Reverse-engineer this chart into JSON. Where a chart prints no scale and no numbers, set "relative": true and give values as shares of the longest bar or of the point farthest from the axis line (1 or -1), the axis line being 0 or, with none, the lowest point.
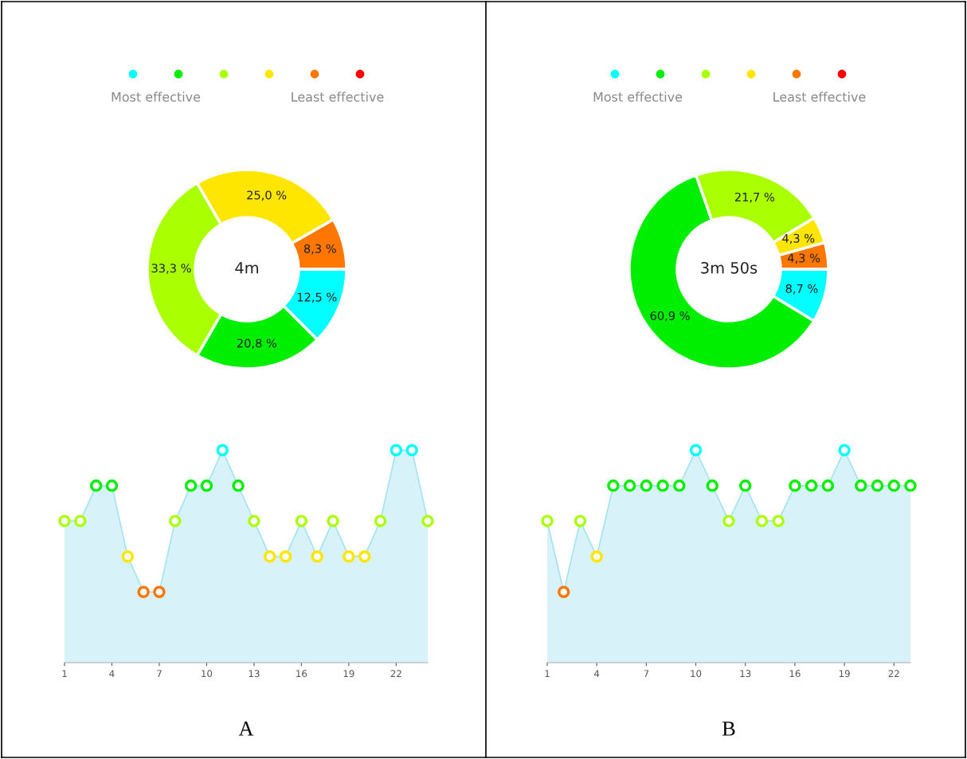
{
  "chart_data": [
    {
      "type": "donut",
      "categories": [
        null,
        null,
        null,
        null,
        null,
        null
      ],
      "values": [
        12.5,
        20.8,
        33.3,
        25.0,
        8.3,
        0
      ],
      "colors": [
        "#00ffff",
        "#00ee00",
        "#aaff00",
        "#ffe600",
        "#ff7700",
        "#ff0000"
      ],
      "value_labels": [
        "12,5 %",
        "20,8 %",
        "33,3 %",
        "25,0 %",
        "8,3 %",
        null
      ],
      "annotations": [
        "Most effective",
        "Least effective",
        "4m"
      ]
    },
    {
      "type": "area",
      "x": [
        1,
        2,
        3,
        4,
        5,
        6,
        7,
        8,
        9,
        10,
        11,
        12,
        13,
        14,
        15,
        16,
        17,
        18,
        19,
        20,
        21,
        22,
        23,
        24
      ],
      "relative": true,
      "xlim": [
        1,
        24
      ],
      "xticks": [
        1,
        4,
        7,
        10,
        13,
        16,
        19,
        22
      ],
      "tick_labels": "x",
      "marker": "circle",
      "grid": false,
      "xlabel": "A",
      "series": [
        {
          "color": "#a6e3f0",
          "values": [
            0.667,
            0.667,
            0.833,
            0.833,
            0.5,
            0.333,
            0.333,
            0.667,
            0.833,
            0.833,
            1,
            0.833,
            0.667,
            0.5,
            0.5,
            0.667,
            0.5,
            0.667,
            0.5,
            0.5,
            0.667,
            1,
            1,
            0.667
          ],
          "colors": [
            "#aaff00",
            "#aaff00",
            "#00ee00",
            "#00ee00",
            "#ffe600",
            "#ff7700",
            "#ff7700",
            "#aaff00",
            "#00ee00",
            "#00ee00",
            "#00ffff",
            "#00ee00",
            "#aaff00",
            "#ffe600",
            "#ffe600",
            "#aaff00",
            "#ffe600",
            "#aaff00",
            "#ffe600",
            "#ffe600",
            "#aaff00",
            "#00ffff",
            "#00ffff",
            "#aaff00"
          ]
        }
      ]
    },
    {
      "type": "donut",
      "categories": [
        null,
        null,
        null,
        null,
        null,
        null
      ],
      "values": [
        8.7,
        60.9,
        21.7,
        4.3,
        4.3,
        0
      ],
      "colors": [
        "#00ffff",
        "#00ee00",
        "#aaff00",
        "#ffe600",
        "#ff7700",
        "#ff0000"
      ],
      "value_labels": [
        "8,7 %",
        "60,9 %",
        "21,7 %",
        "4,3 %",
        "4,3 %",
        null
      ],
      "annotations": [
        "Most effective",
        "Least effective",
        "3m 50s"
      ]
    },
    {
      "type": "area",
      "x": [
        1,
        2,
        3,
        4,
        5,
        6,
        7,
        8,
        9,
        10,
        11,
        12,
        13,
        14,
        15,
        16,
        17,
        18,
        19,
        20,
        21,
        22,
        23
      ],
      "relative": true,
      "xlim": [
        1,
        23
      ],
      "xticks": [
        1,
        4,
        7,
        10,
        13,
        16,
        19,
        22
      ],
      "tick_labels": "x",
      "marker": "circle",
      "grid": false,
      "xlabel": "B",
      "series": [
        {
          "color": "#a6e3f0",
          "values": [
            0.667,
            0.333,
            0.667,
            0.5,
            0.833,
            0.833,
            0.833,
            0.833,
            0.833,
            1,
            0.833,
            0.667,
            0.833,
            0.667,
            0.667,
            0.833,
            0.833,
            0.833,
            1,
            0.833,
            0.833,
            0.833,
            0.833
          ],
          "colors": [
            "#aaff00",
            "#ff7700",
            "#aaff00",
            "#ffe600",
            "#00ee00",
            "#00ee00",
            "#00ee00",
            "#00ee00",
            "#00ee00",
            "#00ffff",
            "#00ee00",
            "#aaff00",
            "#00ee00",
            "#aaff00",
            "#aaff00",
            "#00ee00",
            "#00ee00",
            "#00ee00",
            "#00ffff",
            "#00ee00",
            "#00ee00",
            "#00ee00",
            "#00ee00"
          ]
        }
      ]
    }
  ]
}
